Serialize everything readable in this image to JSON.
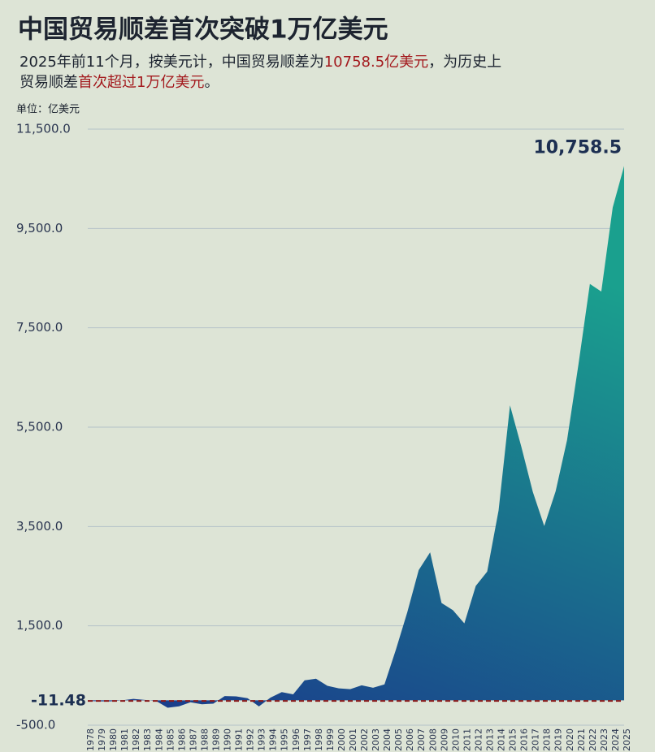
{
  "chart_data": {
    "type": "area",
    "title": "中国贸易顺差首次突破1万亿美元",
    "subtitle_parts": [
      "2025年前11个月，按美元计，中国贸易顺差为",
      "10758.5亿美元",
      "，为历史上",
      "贸易顺差",
      "首次超过1万亿美元",
      "。"
    ],
    "unit_label": "单位：亿美元",
    "categories": [
      "1978",
      "1979",
      "1980",
      "1981",
      "1982",
      "1983",
      "1984",
      "1985",
      "1986",
      "1987",
      "1988",
      "1989",
      "1990",
      "1991",
      "1992",
      "1993",
      "1994",
      "1995",
      "1996",
      "1997",
      "1998",
      "1999",
      "2000",
      "2001",
      "2002",
      "2003",
      "2004",
      "2005",
      "2006",
      "2007",
      "2008",
      "2009",
      "2010",
      "2011",
      "2012",
      "2013",
      "2014",
      "2015",
      "2016",
      "2017",
      "2018",
      "2019",
      "2020",
      "2021",
      "2022",
      "2023",
      "2024",
      "2025"
    ],
    "values": [
      -11.48,
      -20,
      -19,
      0,
      30,
      8,
      -13,
      -149,
      -120,
      -38,
      -78,
      -66,
      87,
      81,
      43,
      -122,
      54,
      167,
      122,
      404,
      435,
      292,
      241,
      225,
      304,
      255,
      321,
      1020,
      1775,
      2622,
      2981,
      1961,
      1815,
      1549,
      2303,
      2592,
      3825,
      5939,
      5100,
      4196,
      3509,
      4211,
      5240,
      6764,
      8384,
      8231,
      9922,
      10758.5
    ],
    "peak_label": "10,758.5",
    "colors": {
      "bottom": "#1a3a8c",
      "top": "#1aa08e"
    },
    "reference_line": {
      "value": -11.48,
      "label": "-11.48",
      "color": "#8b1a1a"
    },
    "ylim": [
      -500,
      11500
    ],
    "yticks": [
      {
        "value": -500,
        "label": "-500.0"
      },
      {
        "value": 1500,
        "label": "1,500.0"
      },
      {
        "value": 3500,
        "label": "3,500.0"
      },
      {
        "value": 5500,
        "label": "5,500.0"
      },
      {
        "value": 7500,
        "label": "7,500.0"
      },
      {
        "value": 9500,
        "label": "9,500.0"
      },
      {
        "value": 11500,
        "label": "11,500.0"
      }
    ],
    "grid": true
  }
}
